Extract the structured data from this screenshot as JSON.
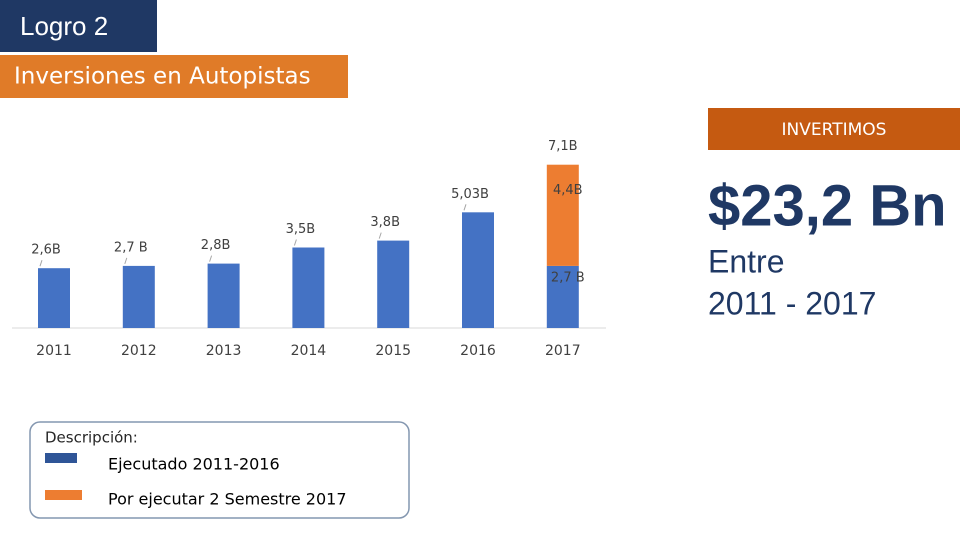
{
  "header": {
    "title": "Logro 2",
    "subtitle": "Inversiones en Autopistas"
  },
  "chart_data": {
    "type": "bar",
    "stacked": true,
    "categories": [
      "2011",
      "2012",
      "2013",
      "2014",
      "2015",
      "2016",
      "2017"
    ],
    "series": [
      {
        "name": "Ejecutado 2011-2016",
        "color": "#4472c4",
        "legend_color": "#2f5597",
        "values": [
          2.6,
          2.7,
          2.8,
          3.5,
          3.8,
          5.03,
          2.7
        ],
        "value_labels": [
          "2,6B",
          "2,7 B",
          "2,8B",
          "3,5B",
          "3,8B",
          "5,03B",
          "2,7 B"
        ]
      },
      {
        "name": "Por ejecutar 2 Semestre 2017",
        "color": "#ed7d31",
        "legend_color": "#ed7d31",
        "values": [
          null,
          null,
          null,
          null,
          null,
          null,
          4.4
        ],
        "value_labels": [
          null,
          null,
          null,
          null,
          null,
          null,
          "4,4B"
        ]
      }
    ],
    "total_label": "7,1B",
    "legend_title": "Descripción:"
  },
  "summary": {
    "heading": "INVERTIMOS",
    "amount": "$23,2 Bn",
    "period": [
      "Entre",
      "2011 - 2017"
    ]
  }
}
